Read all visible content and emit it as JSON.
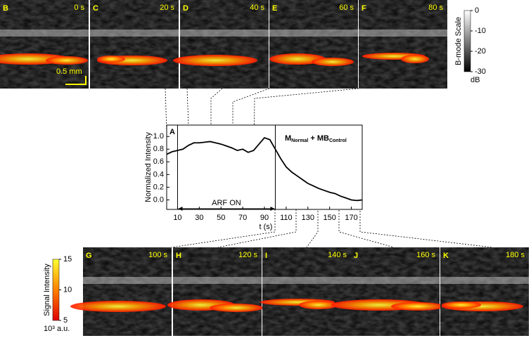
{
  "chart_data": {
    "type": "line",
    "title": "A",
    "annotation": {
      "main": "M",
      "sub1": "Normal",
      "mid": " + MB",
      "sub2": "Control"
    },
    "xlabel": "t (s)",
    "ylabel": "Normalized Intensity",
    "span_label": "ARF ON",
    "x": [
      0,
      5,
      10,
      15,
      20,
      25,
      30,
      35,
      40,
      45,
      50,
      55,
      60,
      65,
      70,
      75,
      80,
      85,
      90,
      95,
      100,
      105,
      110,
      115,
      120,
      125,
      130,
      135,
      140,
      145,
      150,
      155,
      160,
      165,
      170,
      175,
      180
    ],
    "series": [
      {
        "name": "Normalized Intensity",
        "color": "#000000",
        "values": [
          0.72,
          0.76,
          0.78,
          0.8,
          0.86,
          0.9,
          0.9,
          0.91,
          0.92,
          0.9,
          0.88,
          0.85,
          0.82,
          0.78,
          0.8,
          0.75,
          0.78,
          0.88,
          0.98,
          0.95,
          0.8,
          0.65,
          0.52,
          0.44,
          0.38,
          0.32,
          0.26,
          0.22,
          0.18,
          0.15,
          0.12,
          0.1,
          0.06,
          0.03,
          0.0,
          -0.01,
          0.0
        ]
      }
    ],
    "xlim": [
      0,
      180
    ],
    "xticks": [
      10,
      30,
      50,
      70,
      90,
      110,
      130,
      150,
      170
    ],
    "ylim": [
      -0.15,
      1.18
    ],
    "yticks": [
      {
        "value": 0,
        "label": "0.0"
      },
      {
        "value": 0.2,
        "label": "0.2"
      },
      {
        "value": 0.4,
        "label": "0.4"
      },
      {
        "value": 0.6,
        "label": "0.6"
      },
      {
        "value": 0.8,
        "label": "0.8"
      },
      {
        "value": 1,
        "label": "1.0"
      }
    ],
    "span": [
      10,
      100
    ]
  },
  "top_panels": [
    {
      "letter": "B",
      "time": "0 s"
    },
    {
      "letter": "C",
      "time": "20 s"
    },
    {
      "letter": "D",
      "time": "40 s"
    },
    {
      "letter": "E",
      "time": "60 s"
    },
    {
      "letter": "F",
      "time": "80 s"
    }
  ],
  "bottom_panels": [
    {
      "letter": "G",
      "time": "100 s"
    },
    {
      "letter": "H",
      "time": "120 s"
    },
    {
      "letter": "I",
      "time": "140 s"
    },
    {
      "letter": "J",
      "time": "160 s"
    },
    {
      "letter": "K",
      "time": "180 s"
    }
  ],
  "scale_bar": "0.5 mm",
  "bmode_scale": {
    "title": "B-mode Scale",
    "ticks": [
      0,
      -10,
      -20,
      -30
    ],
    "unit": "dB"
  },
  "signal_scale": {
    "title": "Signal Intensity",
    "ticks": [
      15,
      10,
      5
    ],
    "unit": "10³ a.u."
  }
}
